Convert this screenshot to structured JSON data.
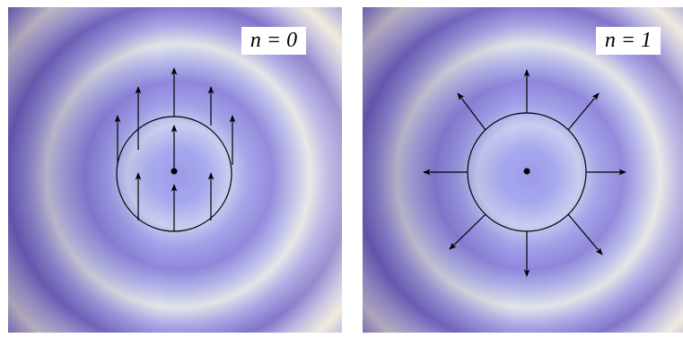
{
  "panels": [
    {
      "label": "n = 0",
      "vector_field": "uniform"
    },
    {
      "label": "n = 1",
      "vector_field": "radial"
    }
  ],
  "colors": {
    "background_dark": "#6f5fb2",
    "background_mid": "#a8a8ec",
    "background_light": "#eae6dc",
    "outline": "#000000"
  }
}
